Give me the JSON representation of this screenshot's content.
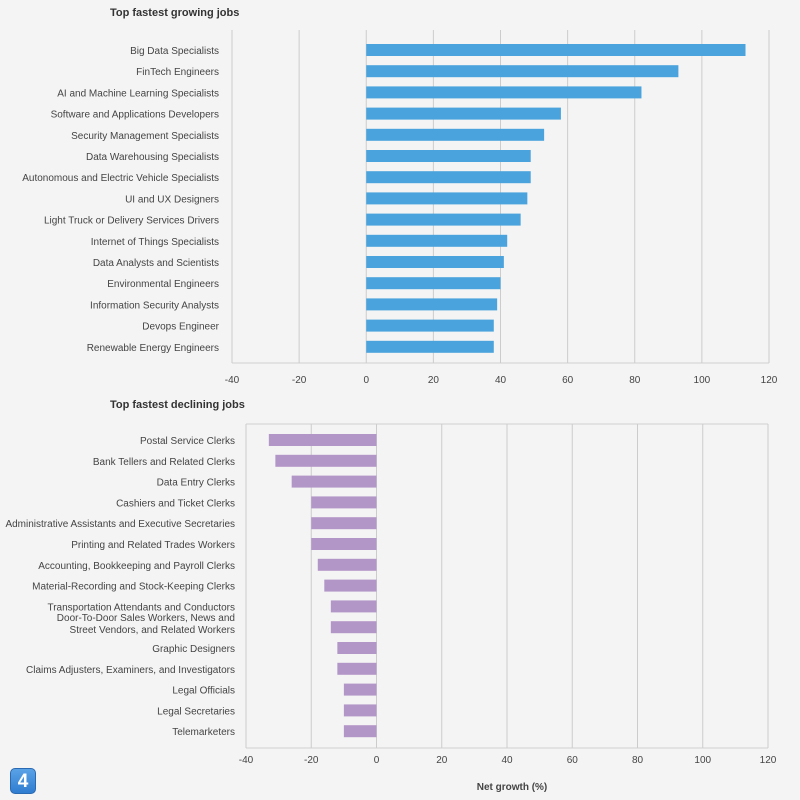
{
  "badge": "4",
  "colors": {
    "growing": "#4aa3dc",
    "declining": "#b396c8",
    "grid": "#cccccc",
    "frame": "#d0d0d0"
  },
  "chart_data": [
    {
      "type": "bar",
      "orientation": "horizontal",
      "title": "Top fastest growing jobs",
      "categories": [
        "Big Data Specialists",
        "FinTech Engineers",
        "AI and Machine Learning Specialists",
        "Software and Applications Developers",
        "Security Management Specialists",
        "Data Warehousing Specialists",
        "Autonomous and Electric Vehicle Specialists",
        "UI and UX Designers",
        "Light Truck or Delivery Services Drivers",
        "Internet of Things Specialists",
        "Data Analysts and Scientists",
        "Environmental Engineers",
        "Information Security Analysts",
        "Devops Engineer",
        "Renewable Energy Engineers"
      ],
      "values": [
        113,
        93,
        82,
        58,
        53,
        49,
        49,
        48,
        46,
        42,
        41,
        40,
        39,
        38,
        38
      ],
      "xlim": [
        -40,
        120
      ],
      "xticks": [
        "-40",
        "-20",
        "0",
        "20",
        "40",
        "60",
        "80",
        "100",
        "120"
      ],
      "xlabel": "",
      "grid": true
    },
    {
      "type": "bar",
      "orientation": "horizontal",
      "title": "Top fastest declining jobs",
      "categories": [
        "Postal Service Clerks",
        "Bank Tellers and Related Clerks",
        "Data Entry Clerks",
        "Cashiers and Ticket Clerks",
        "Administrative Assistants and Executive Secretaries",
        "Printing and Related Trades Workers",
        "Accounting, Bookkeeping and Payroll Clerks",
        "Material-Recording and Stock-Keeping Clerks",
        "Transportation Attendants and Conductors",
        "Door-To-Door Sales Workers, News and Street Vendors, and Related Workers",
        "Graphic Designers",
        "Claims Adjusters, Examiners, and Investigators",
        "Legal Officials",
        "Legal Secretaries",
        "Telemarketers"
      ],
      "category_lines": {
        "9": [
          "Door-To-Door Sales Workers, News and",
          "Street Vendors, and Related Workers"
        ]
      },
      "values": [
        -33,
        -31,
        -26,
        -20,
        -20,
        -20,
        -18,
        -16,
        -14,
        -14,
        -12,
        -12,
        -10,
        -10,
        -10
      ],
      "xlim": [
        -40,
        120
      ],
      "xticks": [
        "-40",
        "-20",
        "0",
        "20",
        "40",
        "60",
        "80",
        "100",
        "120"
      ],
      "xlabel": "Net growth (%)",
      "grid": true
    }
  ]
}
